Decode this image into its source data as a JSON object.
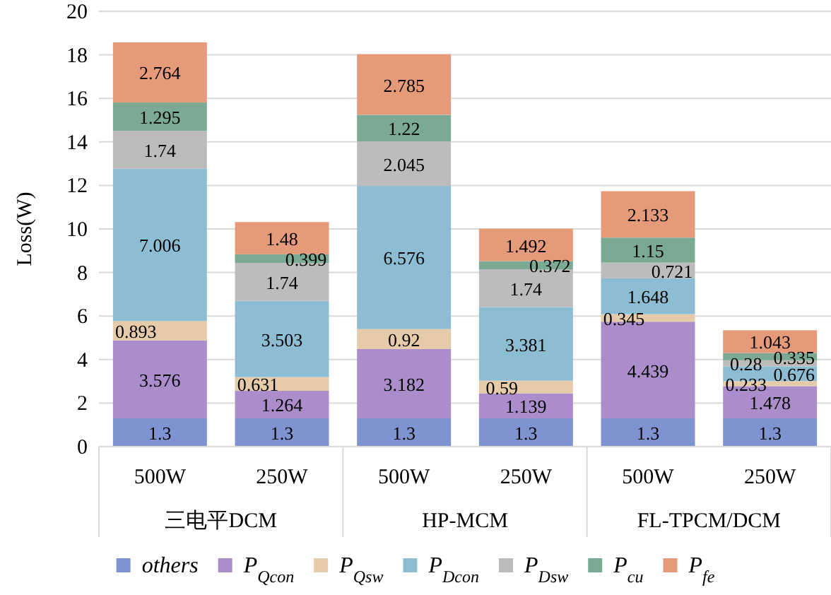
{
  "chart_data": {
    "type": "bar",
    "stacked": true,
    "ylabel": "Loss(W)",
    "categories": [
      "500W",
      "250W",
      "500W",
      "250W",
      "500W",
      "250W"
    ],
    "annotations": [
      "三电平DCM",
      "HP-MCM",
      "FL-TPCM/DCM"
    ],
    "series": [
      {
        "name": "others",
        "color": "#7f93d1",
        "values": [
          1.3,
          1.3,
          1.3,
          1.3,
          1.3,
          1.3
        ]
      },
      {
        "name": "P$_{Qcon}$",
        "color": "#ab8dcc",
        "values": [
          3.576,
          1.264,
          3.182,
          1.139,
          4.439,
          1.478
        ]
      },
      {
        "name": "P$_{Qsw}$",
        "color": "#e5cba9",
        "values": [
          0.893,
          0.631,
          0.92,
          0.59,
          0.345,
          0.233
        ]
      },
      {
        "name": "P$_{Dcon}$",
        "color": "#8dbdd3",
        "values": [
          7.006,
          3.503,
          6.576,
          3.381,
          1.648,
          0.676
        ]
      },
      {
        "name": "P$_{Dsw}$",
        "color": "#bcbcbc",
        "values": [
          1.74,
          1.74,
          2.045,
          1.74,
          0.721,
          0.28
        ]
      },
      {
        "name": "P$_{cu}$",
        "color": "#7aaa94",
        "values": [
          1.295,
          0.399,
          1.22,
          0.372,
          1.15,
          0.335
        ]
      },
      {
        "name": "P$_{fe}$",
        "color": "#e59a7a",
        "values": [
          2.764,
          1.48,
          2.785,
          1.492,
          2.133,
          1.043
        ]
      }
    ],
    "ylim": [
      0,
      20
    ],
    "yticks": [
      0,
      2,
      4,
      6,
      8,
      10,
      12,
      14,
      16,
      18,
      20
    ],
    "grid": "y",
    "legend": "bottom",
    "data_labels": true
  }
}
